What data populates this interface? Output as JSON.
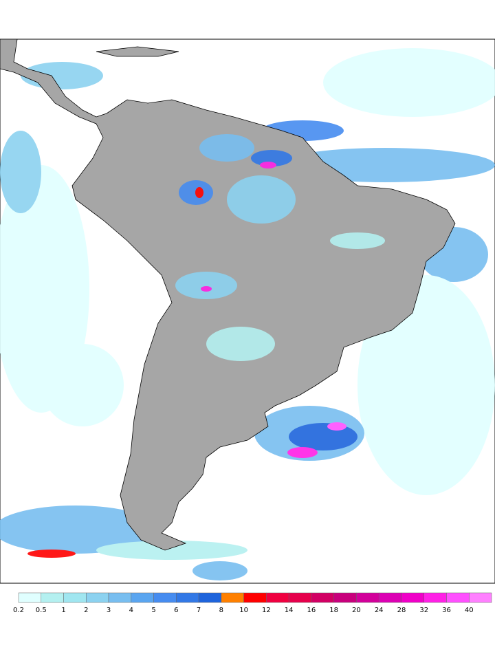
{
  "legend": {
    "levels": [
      0.2,
      0.5,
      1,
      2,
      3,
      4,
      5,
      6,
      7,
      8,
      10,
      12,
      14,
      16,
      18,
      20,
      24,
      28,
      32,
      36,
      40
    ],
    "colors": [
      "#e0ffff",
      "#b4f0f0",
      "#a0e6f0",
      "#8cd2f0",
      "#78bef0",
      "#5aa5f0",
      "#468cf0",
      "#3278e6",
      "#1e64dc",
      "#ff8000",
      "#ff0000",
      "#f00040",
      "#e6004c",
      "#d20064",
      "#c8007c",
      "#d2009a",
      "#dc00b4",
      "#f000c8",
      "#ff20e6",
      "#ff50ff",
      "#ff80ff"
    ]
  }
}
